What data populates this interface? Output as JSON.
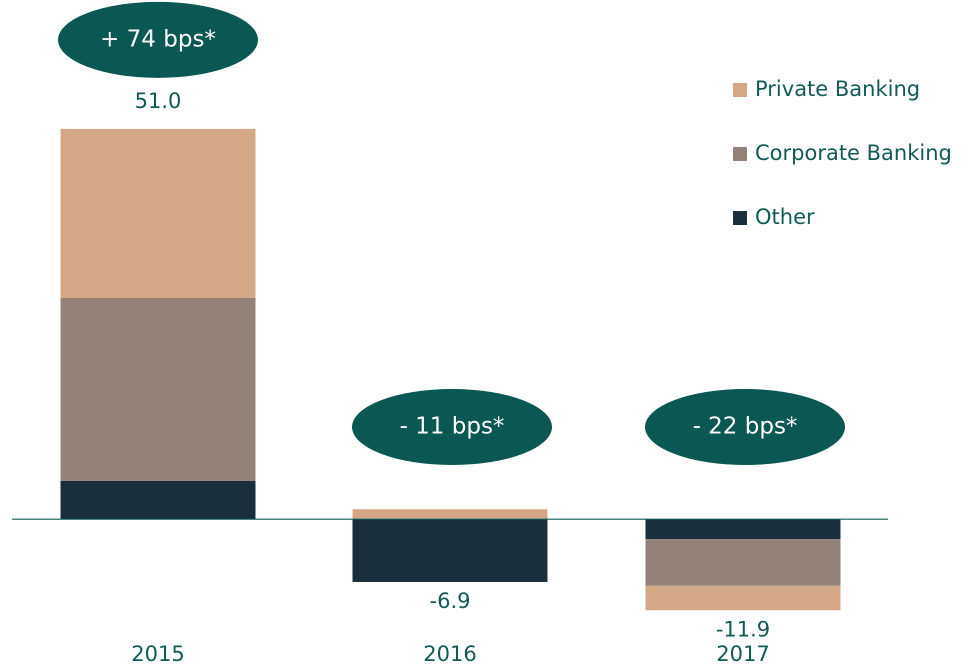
{
  "chart_data": {
    "type": "stacked-bar",
    "categories": [
      "2015",
      "2016",
      "2017"
    ],
    "series": [
      {
        "name": "Other",
        "color": "#1b2e3c",
        "values": [
          5.0,
          -8.2,
          -2.6
        ]
      },
      {
        "name": "Corporate Banking",
        "color": "#93827a",
        "values": [
          23.9,
          0,
          -6.1
        ]
      },
      {
        "name": "Private Banking",
        "color": "#d4a886",
        "values": [
          22.1,
          1.3,
          -3.2
        ]
      }
    ],
    "totals": [
      51.0,
      -6.9,
      -11.9
    ],
    "total_labels": [
      "51.0",
      "-6.9",
      "-11.9"
    ],
    "annotations": [
      "+ 74 bps*",
      "- 11 bps*",
      "- 22 bps*"
    ],
    "annotation_color": "#0b5852",
    "text_color": "#125a55",
    "ylim": [
      -15,
      60
    ],
    "legend": "top-right"
  }
}
